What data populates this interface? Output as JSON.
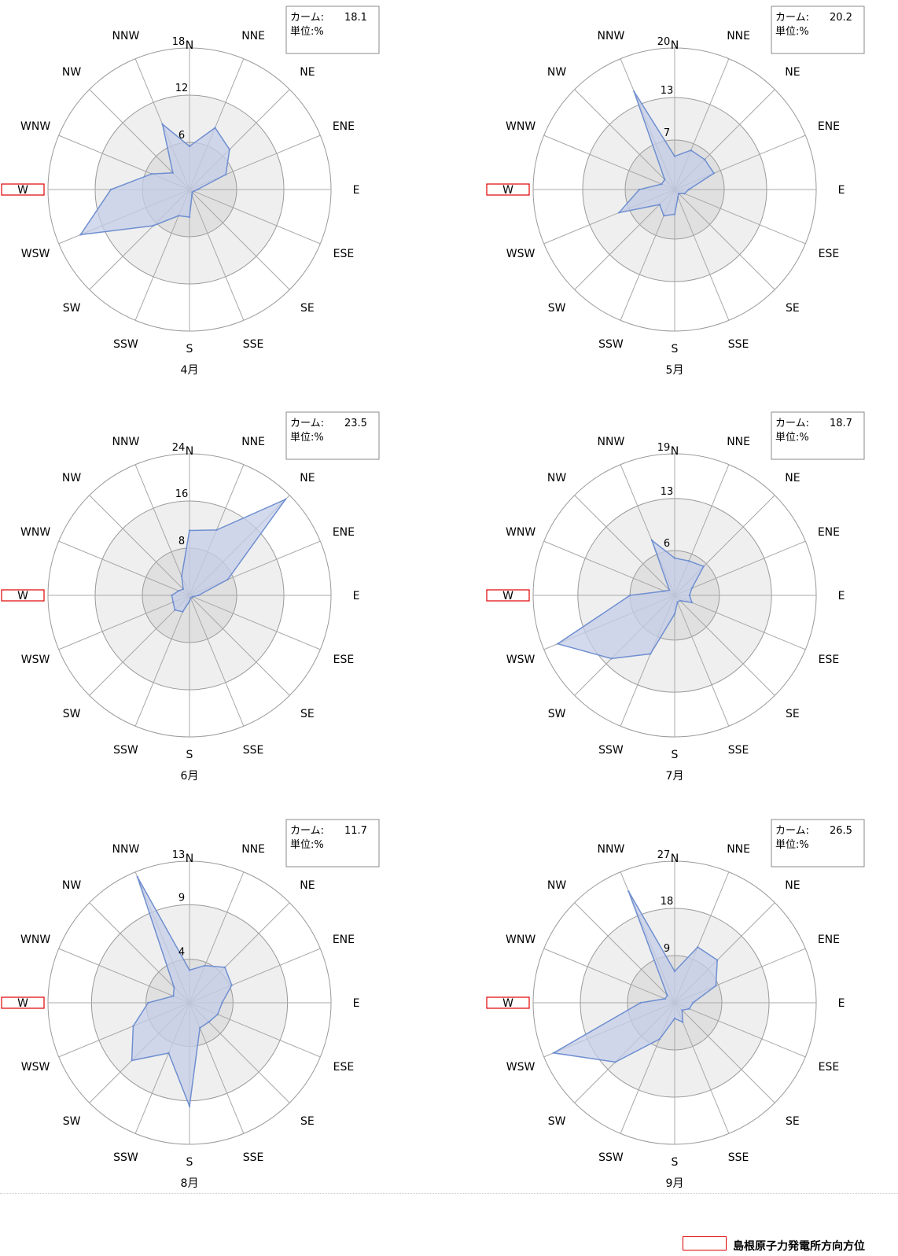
{
  "legend": {
    "label": "島根原子力発電所方向方位",
    "color": "#e00000"
  },
  "style": {
    "fill": "#c5cde8",
    "stroke": "#6f8fd0",
    "ring_inner": "#e0e0e0",
    "ring_mid": "#efefef"
  },
  "chart_data": [
    {
      "type": "radar",
      "caption": "4月",
      "directions": [
        "N",
        "NNE",
        "NE",
        "ENE",
        "E",
        "ESE",
        "SE",
        "SSE",
        "S",
        "SSW",
        "SW",
        "WSW",
        "W",
        "WNW",
        "NW",
        "NNW"
      ],
      "highlight_direction": "W",
      "ticks": [
        6,
        12,
        18
      ],
      "rmax": 18,
      "calm_label": "カーム:",
      "calm_value": "18.1",
      "unit_label": "単位:%",
      "values": [
        5.5,
        8.5,
        7.2,
        5.0,
        1.0,
        0.6,
        0.5,
        0.8,
        3.5,
        3.6,
        6.5,
        15.0,
        10.0,
        5.2,
        3.0,
        9.0
      ]
    },
    {
      "type": "radar",
      "caption": "5月",
      "directions": [
        "N",
        "NNE",
        "NE",
        "ENE",
        "E",
        "ESE",
        "SE",
        "SSE",
        "S",
        "SSW",
        "SW",
        "WSW",
        "W",
        "WNW",
        "NW",
        "NNW"
      ],
      "highlight_direction": "W",
      "ticks": [
        7,
        13,
        20
      ],
      "rmax": 20,
      "calm_label": "カーム:",
      "calm_value": "20.2",
      "unit_label": "単位:%",
      "values": [
        4.7,
        6.0,
        6.0,
        6.0,
        2.0,
        1.5,
        0.8,
        1.2,
        3.5,
        4.0,
        3.0,
        8.5,
        5.0,
        2.0,
        2.0,
        15.0
      ]
    },
    {
      "type": "radar",
      "caption": "6月",
      "directions": [
        "N",
        "NNE",
        "NE",
        "ENE",
        "E",
        "ESE",
        "SE",
        "SSE",
        "S",
        "SSW",
        "SW",
        "WSW",
        "W",
        "WNW",
        "NW",
        "NNW"
      ],
      "highlight_direction": "W",
      "ticks": [
        8,
        16,
        24
      ],
      "rmax": 24,
      "calm_label": "カーム:",
      "calm_value": "23.5",
      "unit_label": "単位:%",
      "values": [
        11.0,
        12.0,
        23.0,
        7.0,
        1.5,
        0.6,
        0.5,
        0.5,
        1.0,
        3.0,
        3.5,
        3.0,
        3.0,
        2.0,
        1.5,
        3.5
      ]
    },
    {
      "type": "radar",
      "caption": "7月",
      "directions": [
        "N",
        "NNE",
        "NE",
        "ENE",
        "E",
        "ESE",
        "SE",
        "SSE",
        "S",
        "SSW",
        "SW",
        "WSW",
        "W",
        "WNW",
        "NW",
        "NNW"
      ],
      "highlight_direction": "W",
      "ticks": [
        6,
        13,
        19
      ],
      "rmax": 19,
      "calm_label": "カーム:",
      "calm_value": "18.7",
      "unit_label": "単位:%",
      "values": [
        5.0,
        5.0,
        5.5,
        2.5,
        2.0,
        2.5,
        1.0,
        1.0,
        2.5,
        8.5,
        12.0,
        17.0,
        6.0,
        1.5,
        1.0,
        8.0
      ]
    },
    {
      "type": "radar",
      "caption": "8月",
      "directions": [
        "N",
        "NNE",
        "NE",
        "ENE",
        "E",
        "ESE",
        "SE",
        "SSE",
        "S",
        "SSW",
        "SW",
        "WSW",
        "W",
        "WNW",
        "NW",
        "NNW"
      ],
      "highlight_direction": "W",
      "ticks": [
        4,
        9,
        13
      ],
      "rmax": 13,
      "calm_label": "カーム:",
      "calm_value": "11.7",
      "unit_label": "単位:%",
      "values": [
        3.0,
        3.7,
        4.6,
        4.2,
        3.0,
        2.8,
        2.5,
        2.5,
        9.5,
        5.0,
        7.5,
        5.6,
        3.8,
        1.6,
        2.0,
        12.5
      ]
    },
    {
      "type": "radar",
      "caption": "9月",
      "directions": [
        "N",
        "NNE",
        "NE",
        "ENE",
        "E",
        "ESE",
        "SE",
        "SSE",
        "S",
        "SSW",
        "SW",
        "WSW",
        "W",
        "WNW",
        "NW",
        "NNW"
      ],
      "highlight_direction": "W",
      "ticks": [
        9,
        18,
        27
      ],
      "rmax": 27,
      "calm_label": "カーム:",
      "calm_value": "26.5",
      "unit_label": "単位:%",
      "values": [
        6.0,
        11.5,
        11.5,
        8.5,
        3.5,
        3.0,
        2.0,
        4.0,
        3.0,
        7.5,
        16.0,
        25.0,
        6.5,
        2.0,
        2.0,
        23.0
      ]
    }
  ]
}
